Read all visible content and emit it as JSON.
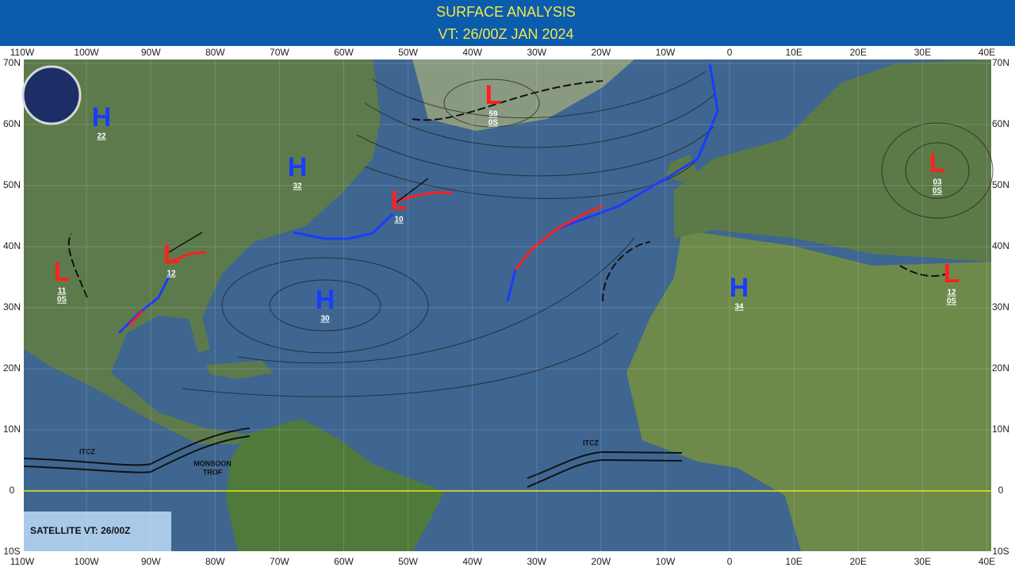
{
  "header": {
    "title": "SURFACE ANALYSIS",
    "valid_time": "VT: 26/00Z JAN 2024"
  },
  "map": {
    "longitude_labels": [
      "110W",
      "100W",
      "90W",
      "80W",
      "70W",
      "60W",
      "50W",
      "40W",
      "30W",
      "20W",
      "10W",
      "0",
      "10E",
      "20E",
      "30E",
      "40E"
    ],
    "latitude_labels": [
      "70N",
      "60N",
      "50N",
      "40N",
      "30N",
      "20N",
      "10N",
      "0",
      "10S"
    ],
    "pressure_systems": [
      {
        "type": "H",
        "value": "22"
      },
      {
        "type": "H",
        "value": "32"
      },
      {
        "type": "L",
        "value": "59",
        "sub": "0S"
      },
      {
        "type": "L",
        "value": "10"
      },
      {
        "type": "L",
        "value": "12"
      },
      {
        "type": "L",
        "value": "11",
        "sub": "0S"
      },
      {
        "type": "H",
        "value": "30"
      },
      {
        "type": "H",
        "value": "34"
      },
      {
        "type": "L",
        "value": "03",
        "sub": "0S"
      },
      {
        "type": "L",
        "value": "12",
        "sub": "0S"
      }
    ],
    "annotations": [
      "ITCZ",
      "ITCZ",
      "MONSOON",
      "TROF"
    ],
    "satellite_label": "SATELLITE VT: 26/00Z"
  }
}
